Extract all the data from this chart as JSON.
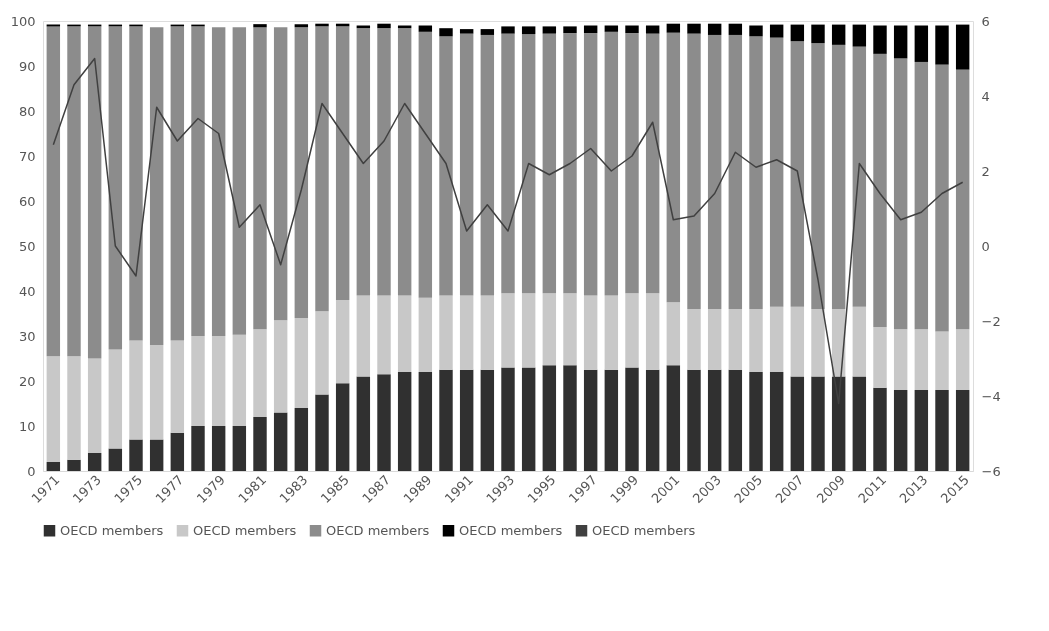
{
  "chart_data": {
    "type": "bar",
    "stacked": true,
    "categories": [
      "1971",
      null,
      "1973",
      null,
      "1975",
      null,
      "1977",
      null,
      "1979",
      null,
      "1981",
      null,
      "1983",
      null,
      "1985",
      null,
      "1987",
      null,
      "1989",
      null,
      "1991",
      null,
      "1993",
      null,
      "1995",
      null,
      "1997",
      null,
      "1999",
      null,
      "2001",
      null,
      "2003",
      null,
      "2005",
      null,
      "2007",
      null,
      "2009",
      null,
      "2011",
      null,
      "2013",
      null,
      "2015"
    ],
    "series": [
      {
        "name": "OECD members",
        "color": "#303030",
        "values": [
          2,
          2.5,
          4,
          5,
          7,
          7,
          8.5,
          10,
          10,
          10,
          12,
          13,
          14,
          17,
          19.5,
          21,
          21.5,
          22,
          22,
          22.5,
          22.5,
          22.5,
          23,
          23,
          23.5,
          23.5,
          22.5,
          22.5,
          23,
          22.5,
          23.5,
          22.5,
          22.5,
          22.5,
          22,
          22,
          21,
          21,
          21,
          21,
          18.5,
          18,
          18,
          18,
          18
        ]
      },
      {
        "name": "OECD members",
        "color": "#c8c8c8",
        "values": [
          23.5,
          23,
          21,
          22,
          22,
          21,
          20.5,
          20,
          20,
          20.3,
          19.5,
          20.5,
          20,
          18.5,
          18.5,
          18,
          17.5,
          17,
          16.5,
          16.5,
          16.5,
          16.5,
          16.5,
          16.5,
          16,
          16,
          16.5,
          16.5,
          16.5,
          17,
          14,
          13.5,
          13.5,
          13.5,
          14,
          14.5,
          15.5,
          15,
          15,
          15.5,
          13.5,
          13.5,
          13.5,
          13,
          13.5
        ]
      },
      {
        "name": "OECD members",
        "color": "#8c8c8c",
        "values": [
          73.3,
          73.3,
          73.8,
          71.8,
          69.8,
          70.6,
          69.8,
          68.8,
          68.6,
          68.3,
          67.1,
          65.1,
          64.6,
          63.3,
          60.8,
          59.4,
          59.4,
          59.4,
          59.1,
          57.6,
          58.2,
          57.9,
          57.7,
          57.6,
          57.7,
          57.8,
          58.3,
          58.6,
          57.8,
          57.7,
          59.9,
          61.2,
          60.9,
          60.9,
          60.6,
          59.8,
          59,
          59.1,
          58.7,
          57.8,
          60.7,
          60.2,
          59.4,
          59.3,
          57.7
        ]
      },
      {
        "name": "OECD members",
        "color": "#000000",
        "values": [
          0.4,
          0.4,
          0.4,
          0.4,
          0.4,
          null,
          0.4,
          0.4,
          null,
          null,
          0.7,
          null,
          0.7,
          0.6,
          0.6,
          0.6,
          1,
          0.6,
          1.4,
          1.8,
          1,
          1.3,
          1.6,
          1.7,
          1.6,
          1.5,
          1.7,
          1.4,
          1.7,
          1.8,
          2,
          2.2,
          2.5,
          2.5,
          2.4,
          2.9,
          3.7,
          4.1,
          4.5,
          4.9,
          6.3,
          7.3,
          8.1,
          8.7,
          10
        ]
      },
      {
        "name": "OECD members",
        "color": "#404040",
        "type": "line",
        "axis": "y2",
        "values": [
          2.7,
          4.3,
          5.0,
          0.0,
          -0.8,
          3.7,
          2.8,
          3.4,
          3.0,
          0.5,
          1.1,
          -0.5,
          1.5,
          3.8,
          3.0,
          2.2,
          2.8,
          3.8,
          3.0,
          2.2,
          0.4,
          1.1,
          0.4,
          2.2,
          1.9,
          2.2,
          2.6,
          2.0,
          2.4,
          3.3,
          0.7,
          0.8,
          1.4,
          2.5,
          2.1,
          2.3,
          2.0,
          -0.9,
          -4.2,
          2.2,
          1.4,
          0.7,
          0.9,
          1.4,
          1.7
        ]
      }
    ],
    "ylim": [
      0,
      100
    ],
    "yticks": [
      0,
      10,
      20,
      30,
      40,
      50,
      60,
      70,
      80,
      90,
      100
    ],
    "y2lim": [
      -6,
      6
    ],
    "y2ticks": [
      -6,
      -4,
      -2,
      0,
      2,
      4,
      6
    ],
    "grid": false,
    "legend": "bottom",
    "line_style": "solid",
    "marker": "none"
  }
}
